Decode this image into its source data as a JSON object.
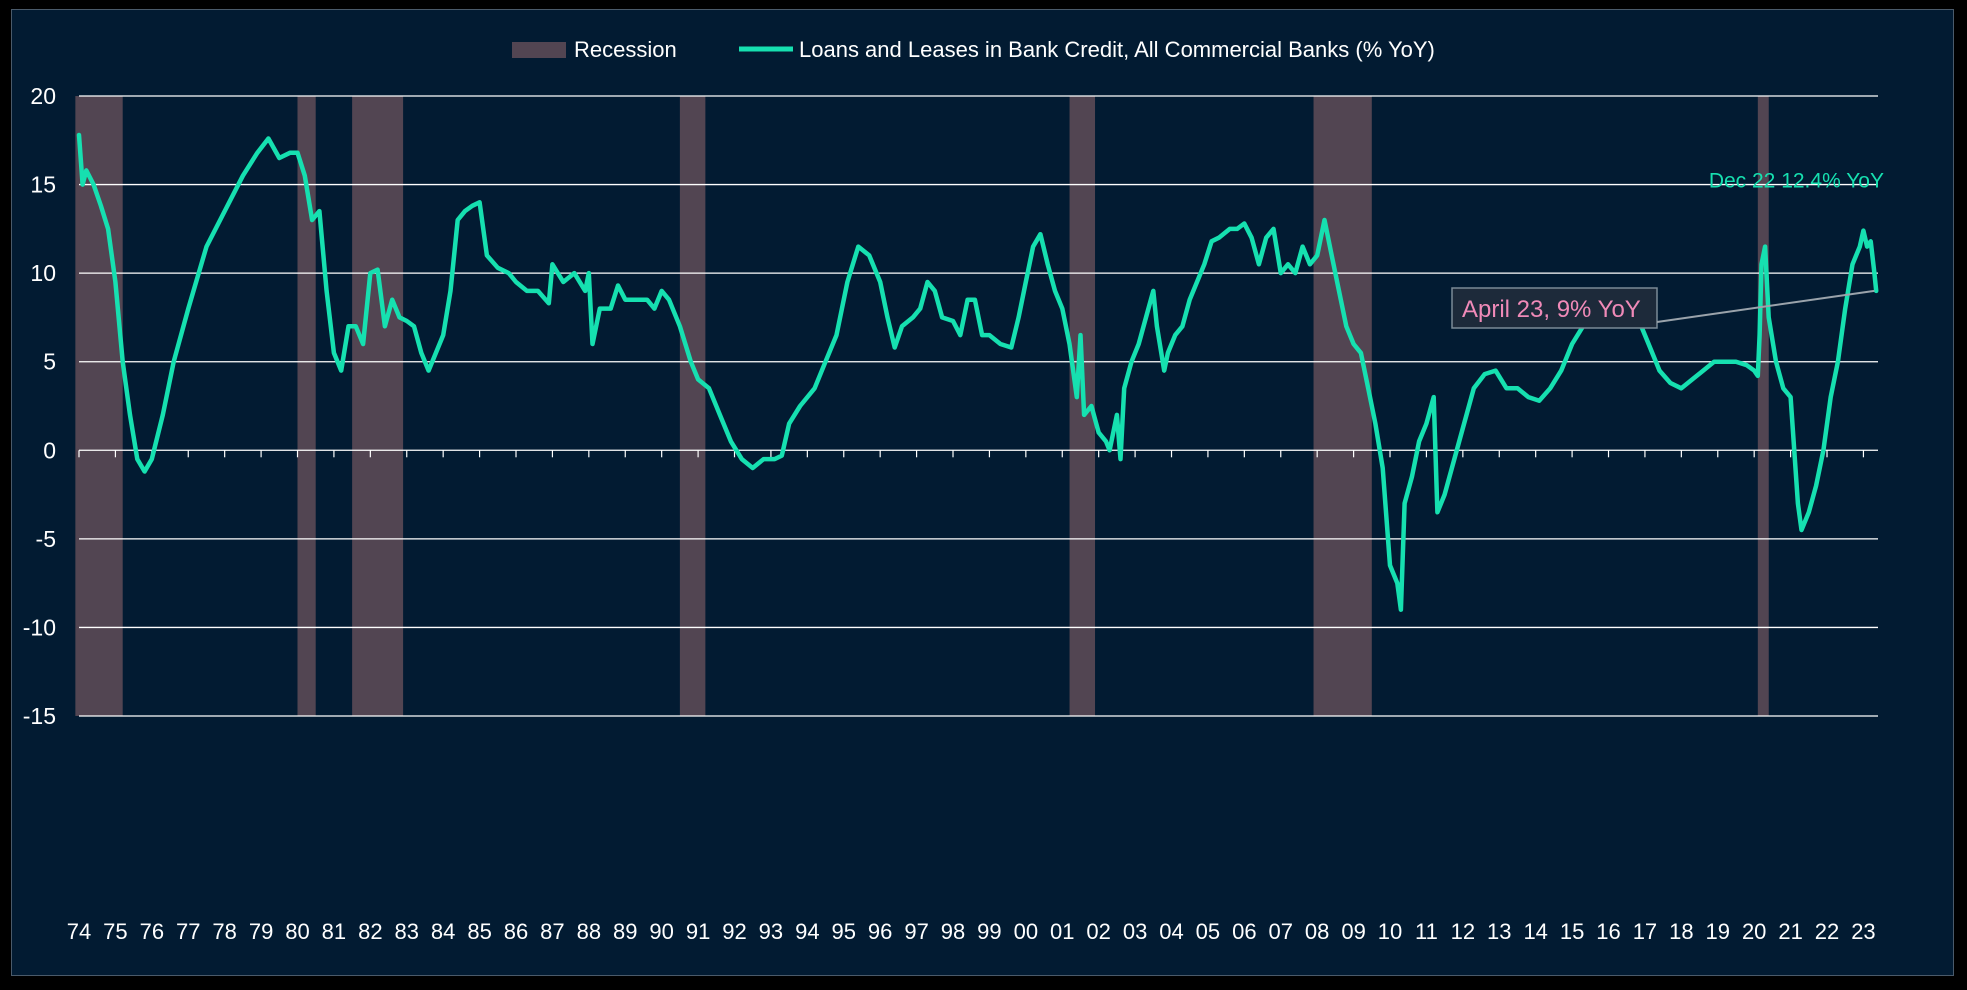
{
  "chart_data": {
    "type": "line",
    "title": "",
    "xlabel": "",
    "ylabel": "",
    "ylim": [
      -15,
      20
    ],
    "xlim": [
      1974.0,
      2023.4
    ],
    "y_ticks": [
      "20",
      "15",
      "10",
      "5",
      "0",
      "-5",
      "-10",
      "-15"
    ],
    "x_ticks": [
      "74",
      "75",
      "76",
      "77",
      "78",
      "79",
      "80",
      "81",
      "82",
      "83",
      "84",
      "85",
      "86",
      "87",
      "88",
      "89",
      "90",
      "91",
      "92",
      "93",
      "94",
      "95",
      "96",
      "97",
      "98",
      "99",
      "00",
      "01",
      "02",
      "03",
      "04",
      "05",
      "06",
      "07",
      "08",
      "09",
      "10",
      "11",
      "12",
      "13",
      "14",
      "15",
      "16",
      "17",
      "18",
      "19",
      "20",
      "21",
      "22",
      "23"
    ],
    "grid": "horizontal",
    "legend_position": "top",
    "legend": {
      "recession_label": "Recession",
      "series_label": "Loans and Leases in Bank Credit, All Commercial Banks (% YoY)"
    },
    "colors": {
      "background": "#021b32",
      "line": "#16e0b0",
      "recession": "#524552",
      "grid": "#ffffff",
      "annotation_pink": "#f08ab8"
    },
    "recessions": [
      [
        1973.9,
        1975.2
      ],
      [
        1980.0,
        1980.5
      ],
      [
        1981.5,
        1982.9
      ],
      [
        1990.5,
        1991.2
      ],
      [
        2001.2,
        2001.9
      ],
      [
        2007.9,
        2009.5
      ],
      [
        2020.1,
        2020.4
      ]
    ],
    "series": [
      {
        "name": "Loans and Leases in Bank Credit, All Commercial Banks (% YoY)",
        "points": [
          [
            1974.0,
            17.8
          ],
          [
            1974.1,
            15.0
          ],
          [
            1974.2,
            15.8
          ],
          [
            1974.4,
            15.0
          ],
          [
            1974.6,
            13.8
          ],
          [
            1974.8,
            12.5
          ],
          [
            1975.0,
            9.5
          ],
          [
            1975.2,
            5.0
          ],
          [
            1975.4,
            2.0
          ],
          [
            1975.6,
            -0.5
          ],
          [
            1975.8,
            -1.2
          ],
          [
            1976.0,
            -0.5
          ],
          [
            1976.3,
            2.0
          ],
          [
            1976.6,
            5.0
          ],
          [
            1977.0,
            8.0
          ],
          [
            1977.5,
            11.5
          ],
          [
            1978.0,
            13.5
          ],
          [
            1978.5,
            15.5
          ],
          [
            1978.9,
            16.8
          ],
          [
            1979.2,
            17.6
          ],
          [
            1979.5,
            16.5
          ],
          [
            1979.8,
            16.8
          ],
          [
            1980.0,
            16.8
          ],
          [
            1980.2,
            15.5
          ],
          [
            1980.4,
            13.0
          ],
          [
            1980.6,
            13.5
          ],
          [
            1980.8,
            9.0
          ],
          [
            1981.0,
            5.5
          ],
          [
            1981.2,
            4.5
          ],
          [
            1981.4,
            7.0
          ],
          [
            1981.6,
            7.0
          ],
          [
            1981.8,
            6.0
          ],
          [
            1982.0,
            10.0
          ],
          [
            1982.2,
            10.2
          ],
          [
            1982.4,
            7.0
          ],
          [
            1982.6,
            8.5
          ],
          [
            1982.8,
            7.5
          ],
          [
            1983.0,
            7.3
          ],
          [
            1983.2,
            7.0
          ],
          [
            1983.4,
            5.5
          ],
          [
            1983.6,
            4.5
          ],
          [
            1983.8,
            5.5
          ],
          [
            1984.0,
            6.5
          ],
          [
            1984.2,
            9.0
          ],
          [
            1984.4,
            13.0
          ],
          [
            1984.6,
            13.5
          ],
          [
            1984.8,
            13.8
          ],
          [
            1985.0,
            14.0
          ],
          [
            1985.2,
            11.0
          ],
          [
            1985.5,
            10.3
          ],
          [
            1985.8,
            10.0
          ],
          [
            1986.0,
            9.5
          ],
          [
            1986.3,
            9.0
          ],
          [
            1986.6,
            9.0
          ],
          [
            1986.9,
            8.3
          ],
          [
            1987.0,
            10.5
          ],
          [
            1987.3,
            9.5
          ],
          [
            1987.6,
            10.0
          ],
          [
            1987.9,
            9.0
          ],
          [
            1988.0,
            10.0
          ],
          [
            1988.1,
            6.0
          ],
          [
            1988.3,
            8.0
          ],
          [
            1988.6,
            8.0
          ],
          [
            1988.8,
            9.3
          ],
          [
            1989.0,
            8.5
          ],
          [
            1989.3,
            8.5
          ],
          [
            1989.6,
            8.5
          ],
          [
            1989.8,
            8.0
          ],
          [
            1990.0,
            9.0
          ],
          [
            1990.2,
            8.5
          ],
          [
            1990.5,
            7.0
          ],
          [
            1990.8,
            5.0
          ],
          [
            1991.0,
            4.0
          ],
          [
            1991.3,
            3.5
          ],
          [
            1991.6,
            2.0
          ],
          [
            1991.9,
            0.5
          ],
          [
            1992.2,
            -0.5
          ],
          [
            1992.5,
            -1.0
          ],
          [
            1992.8,
            -0.5
          ],
          [
            1993.1,
            -0.5
          ],
          [
            1993.3,
            -0.3
          ],
          [
            1993.5,
            1.5
          ],
          [
            1993.8,
            2.5
          ],
          [
            1994.2,
            3.5
          ],
          [
            1994.5,
            5.0
          ],
          [
            1994.8,
            6.5
          ],
          [
            1995.1,
            9.5
          ],
          [
            1995.4,
            11.5
          ],
          [
            1995.7,
            11.0
          ],
          [
            1996.0,
            9.5
          ],
          [
            1996.2,
            7.5
          ],
          [
            1996.4,
            5.8
          ],
          [
            1996.6,
            7.0
          ],
          [
            1996.9,
            7.5
          ],
          [
            1997.1,
            8.0
          ],
          [
            1997.3,
            9.5
          ],
          [
            1997.5,
            9.0
          ],
          [
            1997.7,
            7.5
          ],
          [
            1998.0,
            7.3
          ],
          [
            1998.2,
            6.5
          ],
          [
            1998.4,
            8.5
          ],
          [
            1998.6,
            8.5
          ],
          [
            1998.8,
            6.5
          ],
          [
            1999.0,
            6.5
          ],
          [
            1999.3,
            6.0
          ],
          [
            1999.6,
            5.8
          ],
          [
            1999.8,
            7.5
          ],
          [
            2000.0,
            9.5
          ],
          [
            2000.2,
            11.5
          ],
          [
            2000.4,
            12.2
          ],
          [
            2000.6,
            10.5
          ],
          [
            2000.8,
            9.0
          ],
          [
            2001.0,
            8.0
          ],
          [
            2001.2,
            6.0
          ],
          [
            2001.4,
            3.0
          ],
          [
            2001.5,
            6.5
          ],
          [
            2001.6,
            2.0
          ],
          [
            2001.8,
            2.5
          ],
          [
            2002.0,
            1.0
          ],
          [
            2002.2,
            0.5
          ],
          [
            2002.3,
            0.0
          ],
          [
            2002.5,
            2.0
          ],
          [
            2002.6,
            -0.5
          ],
          [
            2002.7,
            3.5
          ],
          [
            2002.9,
            5.0
          ],
          [
            2003.1,
            6.0
          ],
          [
            2003.3,
            7.5
          ],
          [
            2003.5,
            9.0
          ],
          [
            2003.6,
            7.0
          ],
          [
            2003.8,
            4.5
          ],
          [
            2003.9,
            5.5
          ],
          [
            2004.1,
            6.5
          ],
          [
            2004.3,
            7.0
          ],
          [
            2004.5,
            8.5
          ],
          [
            2004.7,
            9.5
          ],
          [
            2004.9,
            10.5
          ],
          [
            2005.1,
            11.8
          ],
          [
            2005.3,
            12.0
          ],
          [
            2005.6,
            12.5
          ],
          [
            2005.8,
            12.5
          ],
          [
            2006.0,
            12.8
          ],
          [
            2006.2,
            12.0
          ],
          [
            2006.4,
            10.5
          ],
          [
            2006.6,
            12.0
          ],
          [
            2006.8,
            12.5
          ],
          [
            2007.0,
            10.0
          ],
          [
            2007.2,
            10.5
          ],
          [
            2007.4,
            10.0
          ],
          [
            2007.6,
            11.5
          ],
          [
            2007.8,
            10.5
          ],
          [
            2008.0,
            11.0
          ],
          [
            2008.2,
            13.0
          ],
          [
            2008.4,
            11.0
          ],
          [
            2008.6,
            9.0
          ],
          [
            2008.8,
            7.0
          ],
          [
            2009.0,
            6.0
          ],
          [
            2009.2,
            5.5
          ],
          [
            2009.4,
            3.5
          ],
          [
            2009.6,
            1.5
          ],
          [
            2009.8,
            -1.0
          ],
          [
            2010.0,
            -6.5
          ],
          [
            2010.2,
            -7.5
          ],
          [
            2010.3,
            -9.0
          ],
          [
            2010.4,
            -3.0
          ],
          [
            2010.6,
            -1.5
          ],
          [
            2010.8,
            0.5
          ],
          [
            2011.0,
            1.5
          ],
          [
            2011.2,
            3.0
          ],
          [
            2011.3,
            -3.5
          ],
          [
            2011.5,
            -2.5
          ],
          [
            2011.7,
            -1.0
          ],
          [
            2011.9,
            0.5
          ],
          [
            2012.1,
            2.0
          ],
          [
            2012.3,
            3.5
          ],
          [
            2012.6,
            4.3
          ],
          [
            2012.9,
            4.5
          ],
          [
            2013.2,
            3.5
          ],
          [
            2013.5,
            3.5
          ],
          [
            2013.8,
            3.0
          ],
          [
            2014.1,
            2.8
          ],
          [
            2014.4,
            3.5
          ],
          [
            2014.7,
            4.5
          ],
          [
            2015.0,
            6.0
          ],
          [
            2015.3,
            7.0
          ],
          [
            2015.6,
            7.5
          ],
          [
            2015.9,
            7.8
          ],
          [
            2016.2,
            8.3
          ],
          [
            2016.5,
            8.0
          ],
          [
            2016.8,
            7.5
          ],
          [
            2017.1,
            6.0
          ],
          [
            2017.4,
            4.5
          ],
          [
            2017.7,
            3.8
          ],
          [
            2018.0,
            3.5
          ],
          [
            2018.3,
            4.0
          ],
          [
            2018.6,
            4.5
          ],
          [
            2018.9,
            5.0
          ],
          [
            2019.2,
            5.0
          ],
          [
            2019.5,
            5.0
          ],
          [
            2019.8,
            4.8
          ],
          [
            2020.0,
            4.5
          ],
          [
            2020.1,
            4.2
          ],
          [
            2020.15,
            6.5
          ],
          [
            2020.2,
            10.5
          ],
          [
            2020.3,
            11.5
          ],
          [
            2020.4,
            7.5
          ],
          [
            2020.6,
            5.0
          ],
          [
            2020.8,
            3.5
          ],
          [
            2021.0,
            3.0
          ],
          [
            2021.2,
            -3.0
          ],
          [
            2021.3,
            -4.5
          ],
          [
            2021.5,
            -3.5
          ],
          [
            2021.7,
            -2.0
          ],
          [
            2021.9,
            0.0
          ],
          [
            2022.1,
            3.0
          ],
          [
            2022.3,
            5.0
          ],
          [
            2022.5,
            8.0
          ],
          [
            2022.7,
            10.5
          ],
          [
            2022.9,
            11.5
          ],
          [
            2023.0,
            12.4
          ],
          [
            2023.1,
            11.5
          ],
          [
            2023.2,
            11.8
          ],
          [
            2023.3,
            10.0
          ],
          [
            2023.35,
            9.0
          ]
        ]
      }
    ],
    "annotations": [
      {
        "text": "Dec 22 12.4% YoY",
        "x": 2022.96,
        "y": 12.4
      },
      {
        "text": "April 23, 9% YoY",
        "x": 2023.3,
        "y": 9.0
      }
    ]
  }
}
